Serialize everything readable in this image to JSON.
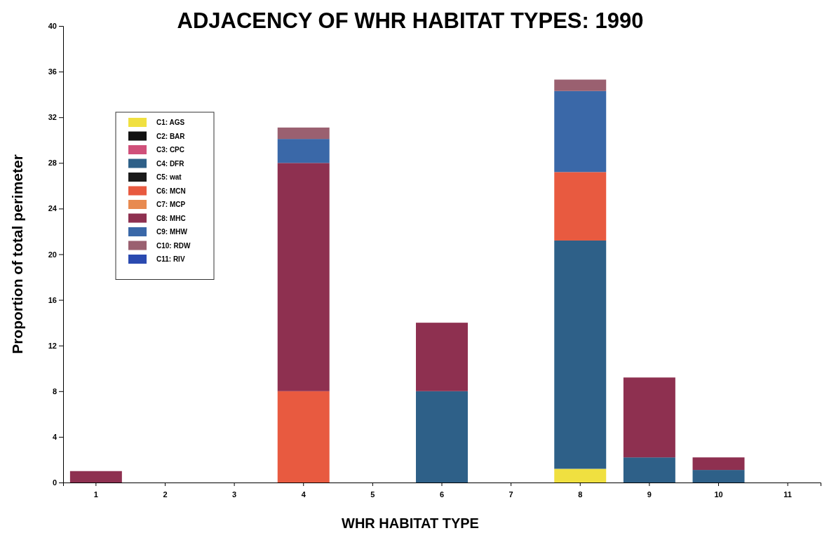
{
  "chart_data": {
    "type": "bar",
    "title": "ADJACENCY OF WHR HABITAT TYPES: 1990",
    "xlabel": "WHR HABITAT TYPE",
    "ylabel": "Proportion of total perimeter",
    "categories": [
      "1",
      "2",
      "3",
      "4",
      "5",
      "6",
      "7",
      "8",
      "9",
      "10",
      "11"
    ],
    "stacked": true,
    "legend": "top left",
    "grid": false,
    "ylim": [
      0,
      40
    ],
    "yticks": [
      0,
      4,
      8,
      12,
      16,
      20,
      24,
      28,
      32,
      36,
      40
    ],
    "series": [
      {
        "name": "C1:  AGS",
        "color": "#f0e040",
        "values": [
          null,
          null,
          null,
          null,
          null,
          null,
          null,
          1.2,
          null,
          null,
          null
        ]
      },
      {
        "name": "C2:  BAR",
        "color": "#111111",
        "values": [
          null,
          null,
          null,
          null,
          null,
          null,
          null,
          null,
          null,
          null,
          null
        ]
      },
      {
        "name": "C3:  CPC",
        "color": "#d0507a",
        "values": [
          null,
          null,
          null,
          null,
          null,
          null,
          null,
          null,
          null,
          null,
          null
        ]
      },
      {
        "name": "C4:  DFR",
        "color": "#2e6088",
        "values": [
          null,
          null,
          null,
          null,
          null,
          8,
          null,
          20,
          2.2,
          1.1,
          null
        ]
      },
      {
        "name": "C5:  wat",
        "color": "#1a1a1a",
        "values": [
          null,
          null,
          null,
          null,
          null,
          null,
          null,
          null,
          null,
          null,
          null
        ]
      },
      {
        "name": "C6:  MCN",
        "color": "#e85a40",
        "values": [
          null,
          null,
          null,
          8,
          null,
          null,
          null,
          6,
          null,
          null,
          null
        ]
      },
      {
        "name": "C7:  MCP",
        "color": "#e88a50",
        "values": [
          null,
          null,
          null,
          null,
          null,
          null,
          null,
          null,
          null,
          null,
          null
        ]
      },
      {
        "name": "C8:  MHC",
        "color": "#8e3050",
        "values": [
          1.0,
          null,
          null,
          20,
          null,
          6,
          null,
          null,
          7.0,
          1.1,
          null
        ]
      },
      {
        "name": "C9:  MHW",
        "color": "#3a68a8",
        "values": [
          null,
          null,
          null,
          2.1,
          null,
          null,
          null,
          7.1,
          null,
          null,
          null
        ]
      },
      {
        "name": "C10:  RDW",
        "color": "#9a6070",
        "values": [
          null,
          null,
          null,
          1.0,
          null,
          null,
          null,
          1.0,
          null,
          null,
          null
        ]
      },
      {
        "name": "C11:  RIV",
        "color": "#2a4ab0",
        "values": [
          null,
          null,
          null,
          null,
          null,
          null,
          null,
          null,
          null,
          null,
          null
        ]
      }
    ]
  }
}
